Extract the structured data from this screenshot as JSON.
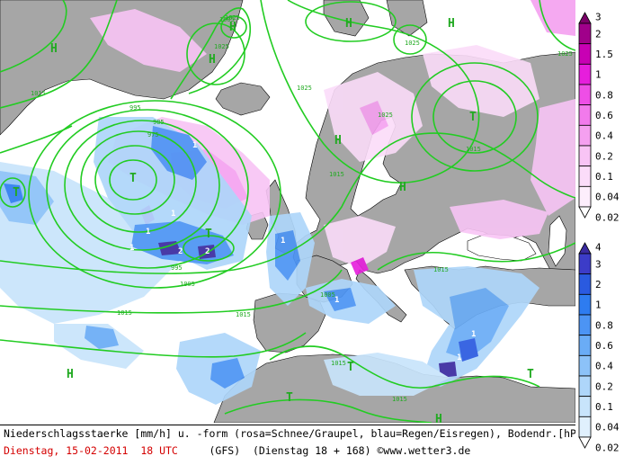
{
  "map": {
    "pressure_labels": [
      "1025",
      "1025",
      "1025",
      "1025",
      "1025",
      "1025",
      "1015",
      "1015",
      "1015",
      "1015",
      "1015",
      "1015",
      "1015",
      "1015",
      "1005",
      "1005",
      "1005",
      "995",
      "995",
      "985",
      "975"
    ],
    "high_marker": "H",
    "low_marker": "T",
    "precip_value_label": "1",
    "precip_value_label_2": "2",
    "colors": {
      "land": "#a6a6a6",
      "sea": "#ffffff",
      "isobar": "#22cc22",
      "coast": "#000000"
    }
  },
  "footer": {
    "line1": "Niederschlagsstaerke [mm/h] u. -form (rosa=Schnee/Graupel, blau=Regen/Eisregen), Bodendr.[hPa]",
    "date": "Dienstag, 15-02-2011  18 UTC",
    "model": "(GFS)  (Dienstag 18 + 168)",
    "copyright_symbol": "©",
    "site": "www.wetter3.de"
  },
  "legend": {
    "snow": {
      "labels": [
        "3",
        "2",
        "1.5",
        "1",
        "0.8",
        "0.6",
        "0.4",
        "0.2",
        "0.1",
        "0.04",
        "0.02"
      ],
      "colors": [
        "#7a0068",
        "#a0008a",
        "#c800b4",
        "#e61edc",
        "#ee4ee6",
        "#f27aec",
        "#f5a0f0",
        "#f8c4f5",
        "#fbdcf9",
        "#fdeefc",
        "#ffffff"
      ]
    },
    "rain": {
      "labels": [
        "4",
        "3",
        "2",
        "1",
        "0.8",
        "0.6",
        "0.4",
        "0.2",
        "0.1",
        "0.04",
        "0.02"
      ],
      "colors": [
        "#3a2aa0",
        "#3c3cc8",
        "#2a5ae0",
        "#2e7cf0",
        "#4c94f4",
        "#6aacf6",
        "#8cc2f8",
        "#aed6fa",
        "#c8e4fb",
        "#e0f0fd",
        "#ffffff"
      ]
    }
  }
}
